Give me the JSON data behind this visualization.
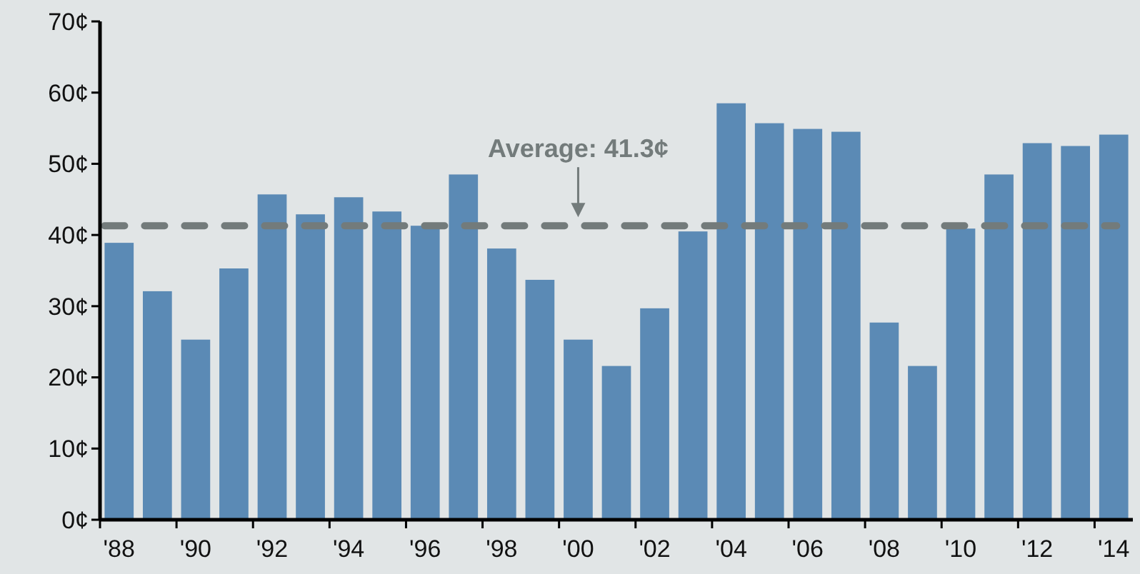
{
  "chart_data": {
    "type": "bar",
    "categories": [
      "'88",
      null,
      "'90",
      null,
      "'92",
      null,
      "'94",
      null,
      "'96",
      null,
      "'98",
      null,
      "'00",
      null,
      "'02",
      null,
      "'04",
      null,
      "'06",
      null,
      "'08",
      null,
      "'10",
      null,
      "'12",
      null,
      "'14"
    ],
    "values": [
      38.9,
      32.1,
      25.3,
      35.3,
      45.7,
      42.9,
      45.3,
      43.3,
      41.3,
      48.5,
      38.1,
      33.7,
      25.3,
      21.6,
      29.7,
      40.5,
      58.5,
      55.7,
      54.9,
      54.5,
      27.7,
      21.6,
      40.9,
      48.5,
      52.9,
      52.5,
      54.1
    ],
    "color": "#5b8ab5",
    "ylim": [
      0,
      70
    ],
    "yticks": [
      {
        "value": 0,
        "label": "0¢"
      },
      {
        "value": 10,
        "label": "10¢"
      },
      {
        "value": 20,
        "label": "20¢"
      },
      {
        "value": 30,
        "label": "30¢"
      },
      {
        "value": 40,
        "label": "40¢"
      },
      {
        "value": 50,
        "label": "50¢"
      },
      {
        "value": 60,
        "label": "60¢"
      },
      {
        "value": 70,
        "label": "70¢"
      }
    ],
    "ref_lines": [
      {
        "axis": "y",
        "value": 41.3,
        "label": "Average: 41.3¢",
        "color": "#737b7b",
        "line_style": "dashed"
      }
    ],
    "grid": false
  }
}
